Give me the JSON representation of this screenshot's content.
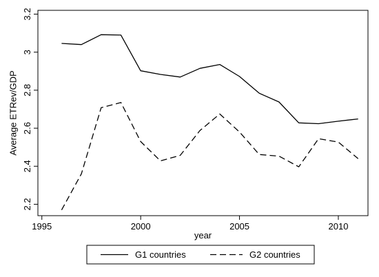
{
  "chart_data": {
    "type": "line",
    "title": "",
    "xlabel": "year",
    "ylabel": "Average ETRev/GDP",
    "xlim": [
      1994.8,
      2011.5
    ],
    "ylim": [
      2.14,
      3.22
    ],
    "xticks": [
      1995,
      2000,
      2005,
      2010
    ],
    "xtick_labels": [
      "1995",
      "2000",
      "2005",
      "2010"
    ],
    "yticks": [
      2.2,
      2.4,
      2.6,
      2.8,
      3.0,
      3.2
    ],
    "ytick_labels": [
      "2.2",
      "2.4",
      "2.6",
      "2.8",
      "3",
      "3.2"
    ],
    "grid": false,
    "legend_position": "bottom",
    "x": [
      1996,
      1997,
      1998,
      1999,
      2000,
      2001,
      2002,
      2003,
      2004,
      2005,
      2006,
      2007,
      2008,
      2009,
      2010,
      2011
    ],
    "series": [
      {
        "name": "G1 countries",
        "style": "solid",
        "color": "#000000",
        "values": [
          3.046,
          3.04,
          3.092,
          3.09,
          2.902,
          2.883,
          2.869,
          2.915,
          2.935,
          2.872,
          2.784,
          2.738,
          2.628,
          2.624,
          2.637,
          2.649
        ]
      },
      {
        "name": "G2 countries",
        "style": "dashed",
        "color": "#000000",
        "values": [
          2.17,
          2.36,
          2.708,
          2.735,
          2.53,
          2.428,
          2.457,
          2.588,
          2.675,
          2.58,
          2.462,
          2.453,
          2.397,
          2.545,
          2.527,
          2.44
        ]
      }
    ]
  }
}
